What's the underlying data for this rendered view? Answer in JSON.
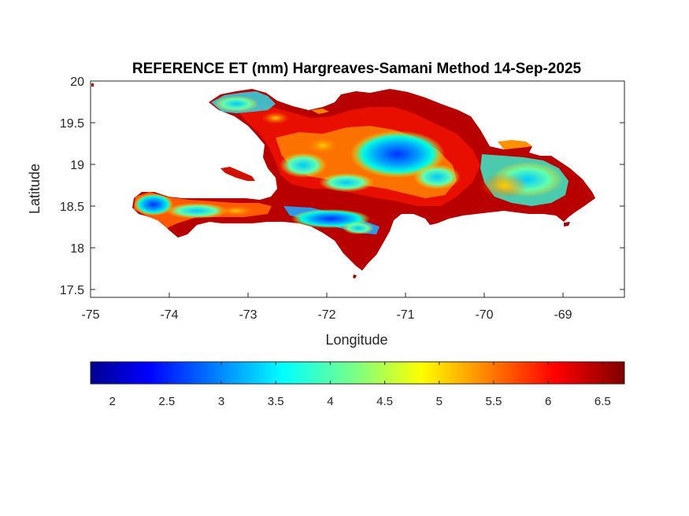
{
  "title": "REFERENCE ET (mm) Hargreaves-Samani Method  14-Sep-2025",
  "xlabel": "Longitude",
  "ylabel": "Latitude",
  "xticks": [
    "-75",
    "-74",
    "-73",
    "-72",
    "-71",
    "-70",
    "-69"
  ],
  "yticks": [
    "20",
    "19.5",
    "19",
    "18.5",
    "18",
    "17.5"
  ],
  "colorbar": {
    "ticks": [
      "2",
      "2.5",
      "3",
      "3.5",
      "4",
      "4.5",
      "5",
      "5.5",
      "6",
      "6.5"
    ],
    "range": [
      1.8,
      6.7
    ],
    "colormap": "jet"
  },
  "map": {
    "lon_range": [
      -75,
      -68.2
    ],
    "lat_range": [
      17.4,
      20
    ],
    "region": "Hispaniola"
  }
}
